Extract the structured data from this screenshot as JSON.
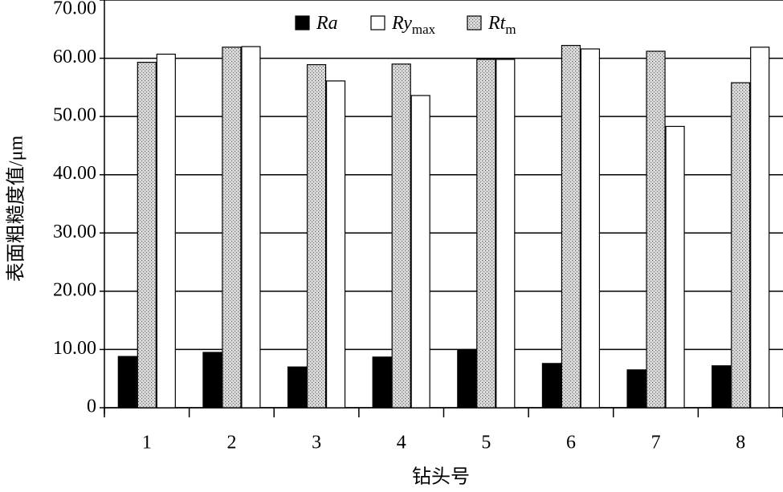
{
  "chart_data": {
    "type": "bar",
    "xlabel": "钻头号",
    "ylabel": "表面粗糙度值/μm",
    "categories": [
      "1",
      "2",
      "3",
      "4",
      "5",
      "6",
      "7",
      "8"
    ],
    "series": [
      {
        "name": "Ra",
        "color": "#000000",
        "values": [
          8.8,
          9.5,
          7.0,
          8.7,
          9.9,
          7.6,
          6.5,
          7.2
        ]
      },
      {
        "name": "Rymax",
        "color": "#ffffff",
        "values": [
          60.7,
          62.0,
          56.1,
          53.6,
          59.8,
          61.6,
          48.3,
          61.9
        ]
      },
      {
        "name": "Rtm",
        "color": "#bdbdbd",
        "pattern": "dots",
        "values": [
          59.3,
          61.9,
          58.9,
          59.0,
          59.8,
          62.2,
          61.2,
          55.8
        ]
      }
    ],
    "ylim": [
      0,
      70
    ],
    "yticks": [
      {
        "value": 0,
        "label": "0"
      },
      {
        "value": 10,
        "label": "10.00"
      },
      {
        "value": 20,
        "label": "20.00"
      },
      {
        "value": 30,
        "label": "30.00"
      },
      {
        "value": 40,
        "label": "40.00"
      },
      {
        "value": 50,
        "label": "50.00"
      },
      {
        "value": 60,
        "label": "60.00"
      },
      {
        "value": 70,
        "label": "70.00"
      }
    ],
    "grid": true,
    "legend": "top"
  }
}
